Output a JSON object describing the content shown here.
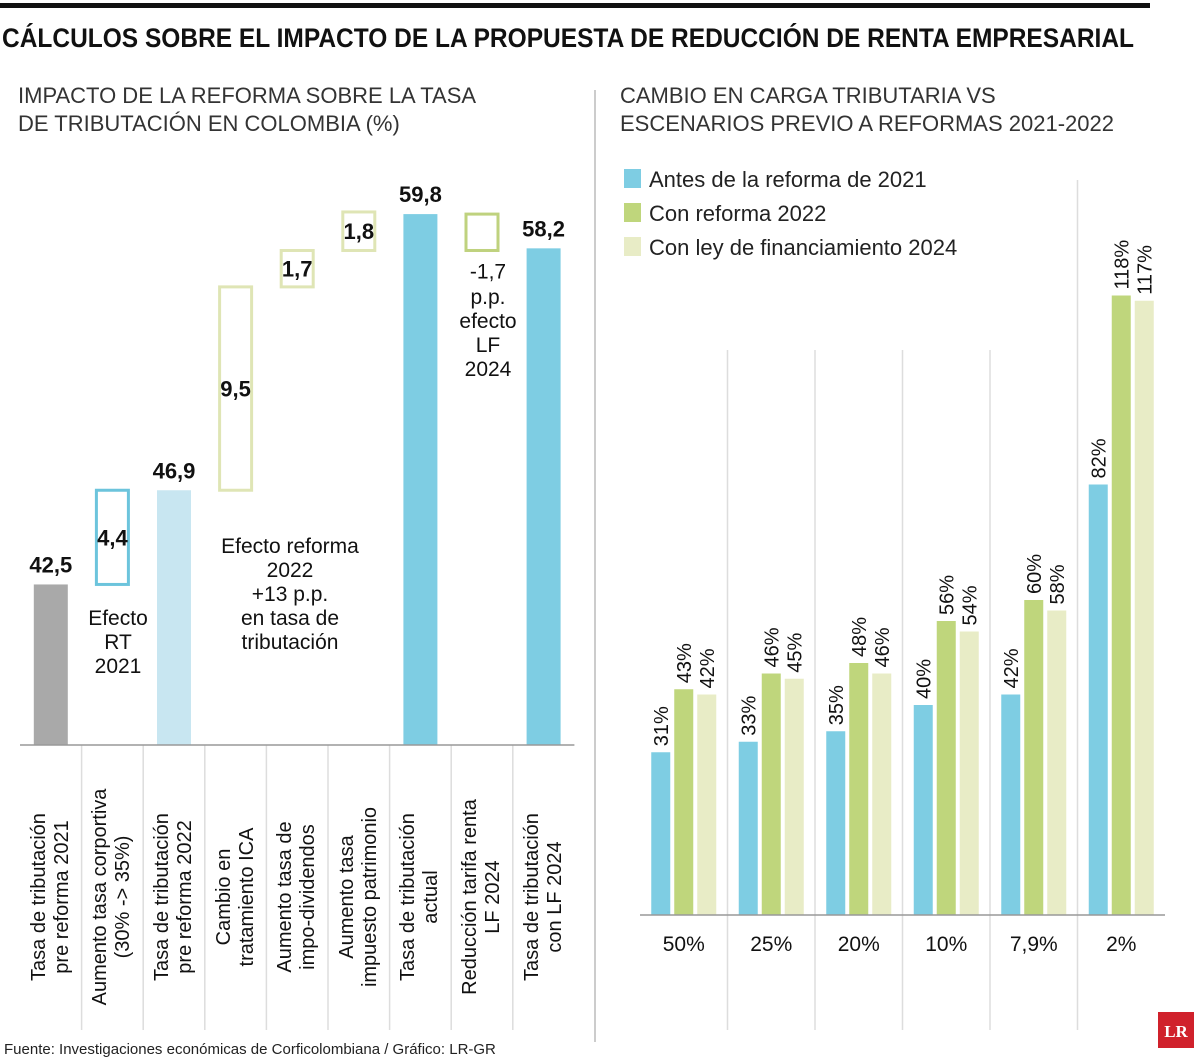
{
  "title": "CÁLCULOS SOBRE EL IMPACTO DE LA PROPUESTA DE REDUCCIÓN DE RENTA EMPRESARIAL",
  "source": "Fuente: Investigaciones económicas de Corficolombiana / Gráfico: LR-GR",
  "logo": "LR",
  "chart_data": [
    {
      "type": "waterfall",
      "title": "IMPACTO DE LA REFORMA SOBRE LA TASA\nDE TRIBUTACIÓN EN COLOMBIA (%)",
      "categories": [
        "Tasa de tributación\npre reforma 2021",
        "Aumento tasa corportiva\n(30% -> 35%)",
        "Tasa de tributación\npre reforma 2022",
        "Cambio en\ntratamiento ICA",
        "Aumento tasa de\nimpo-dividendos",
        "Aumento tasa\nimpuesto patrimonio",
        "Tasa de tributación\nactual",
        "Reducción tarifa renta\nLF 2024",
        "Tasa de tributación\ncon LF 2024"
      ],
      "values": [
        42.5,
        4.4,
        46.9,
        9.5,
        1.7,
        1.8,
        59.8,
        -1.7,
        58.2
      ],
      "value_labels": [
        "42,5",
        "4,4",
        "46,9",
        "9,5",
        "1,7",
        "1,8",
        "59,8",
        "-1,7",
        "58,2"
      ],
      "measure": [
        "absolute",
        "relative",
        "absolute",
        "relative",
        "relative",
        "relative",
        "absolute",
        "relative",
        "absolute"
      ],
      "colors": [
        "#a9a9a9",
        "#6cc4dc",
        "#c8e6f1",
        "#dfe5b5",
        "#dfe5b5",
        "#dfe5b5",
        "#7ecde3",
        "#bfd27e",
        "#7ecde3"
      ],
      "ylim": [
        35,
        62
      ],
      "annotations": [
        "Efecto\nRT\n2021",
        "Efecto reforma\n2022\n+13 p.p.\nen tasa de\ntributación",
        "p.p.\nefecto\nLF\n2024"
      ]
    },
    {
      "type": "grouped_bar",
      "title": "CAMBIO EN CARGA TRIBUTARIA VS\nESCENARIOS PREVIO A REFORMAS 2021-2022",
      "categories": [
        "50%",
        "25%",
        "20%",
        "10%",
        "7,9%",
        "2%"
      ],
      "series": [
        {
          "name": "Antes de la reforma de 2021",
          "color": "#7ecde3",
          "values": [
            31,
            33,
            35,
            40,
            42,
            82
          ],
          "value_labels": [
            "31%",
            "33%",
            "35%",
            "40%",
            "42%",
            "82%"
          ]
        },
        {
          "name": "Con reforma 2022",
          "color": "#bfd67c",
          "values": [
            43,
            46,
            48,
            56,
            60,
            118
          ],
          "value_labels": [
            "43%",
            "46%",
            "48%",
            "56%",
            "60%",
            "118%"
          ]
        },
        {
          "name": "Con ley de financiamiento 2024",
          "color": "#e8ecc6",
          "values": [
            42,
            45,
            46,
            54,
            58,
            117
          ],
          "value_labels": [
            "42%",
            "45%",
            "46%",
            "54%",
            "58%",
            "117%"
          ]
        }
      ],
      "ylim": [
        0,
        140
      ],
      "legend": "top-left"
    }
  ]
}
